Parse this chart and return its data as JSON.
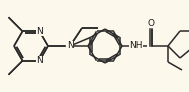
{
  "bg_color": "#fdf8ec",
  "bond_color": "#2a2a2a",
  "atom_color": "#1a1a1a",
  "bond_width": 1.1,
  "dbo": 0.012,
  "fs": 6.5,
  "xlim": [
    0,
    1.89
  ],
  "ylim": [
    0,
    0.92
  ]
}
